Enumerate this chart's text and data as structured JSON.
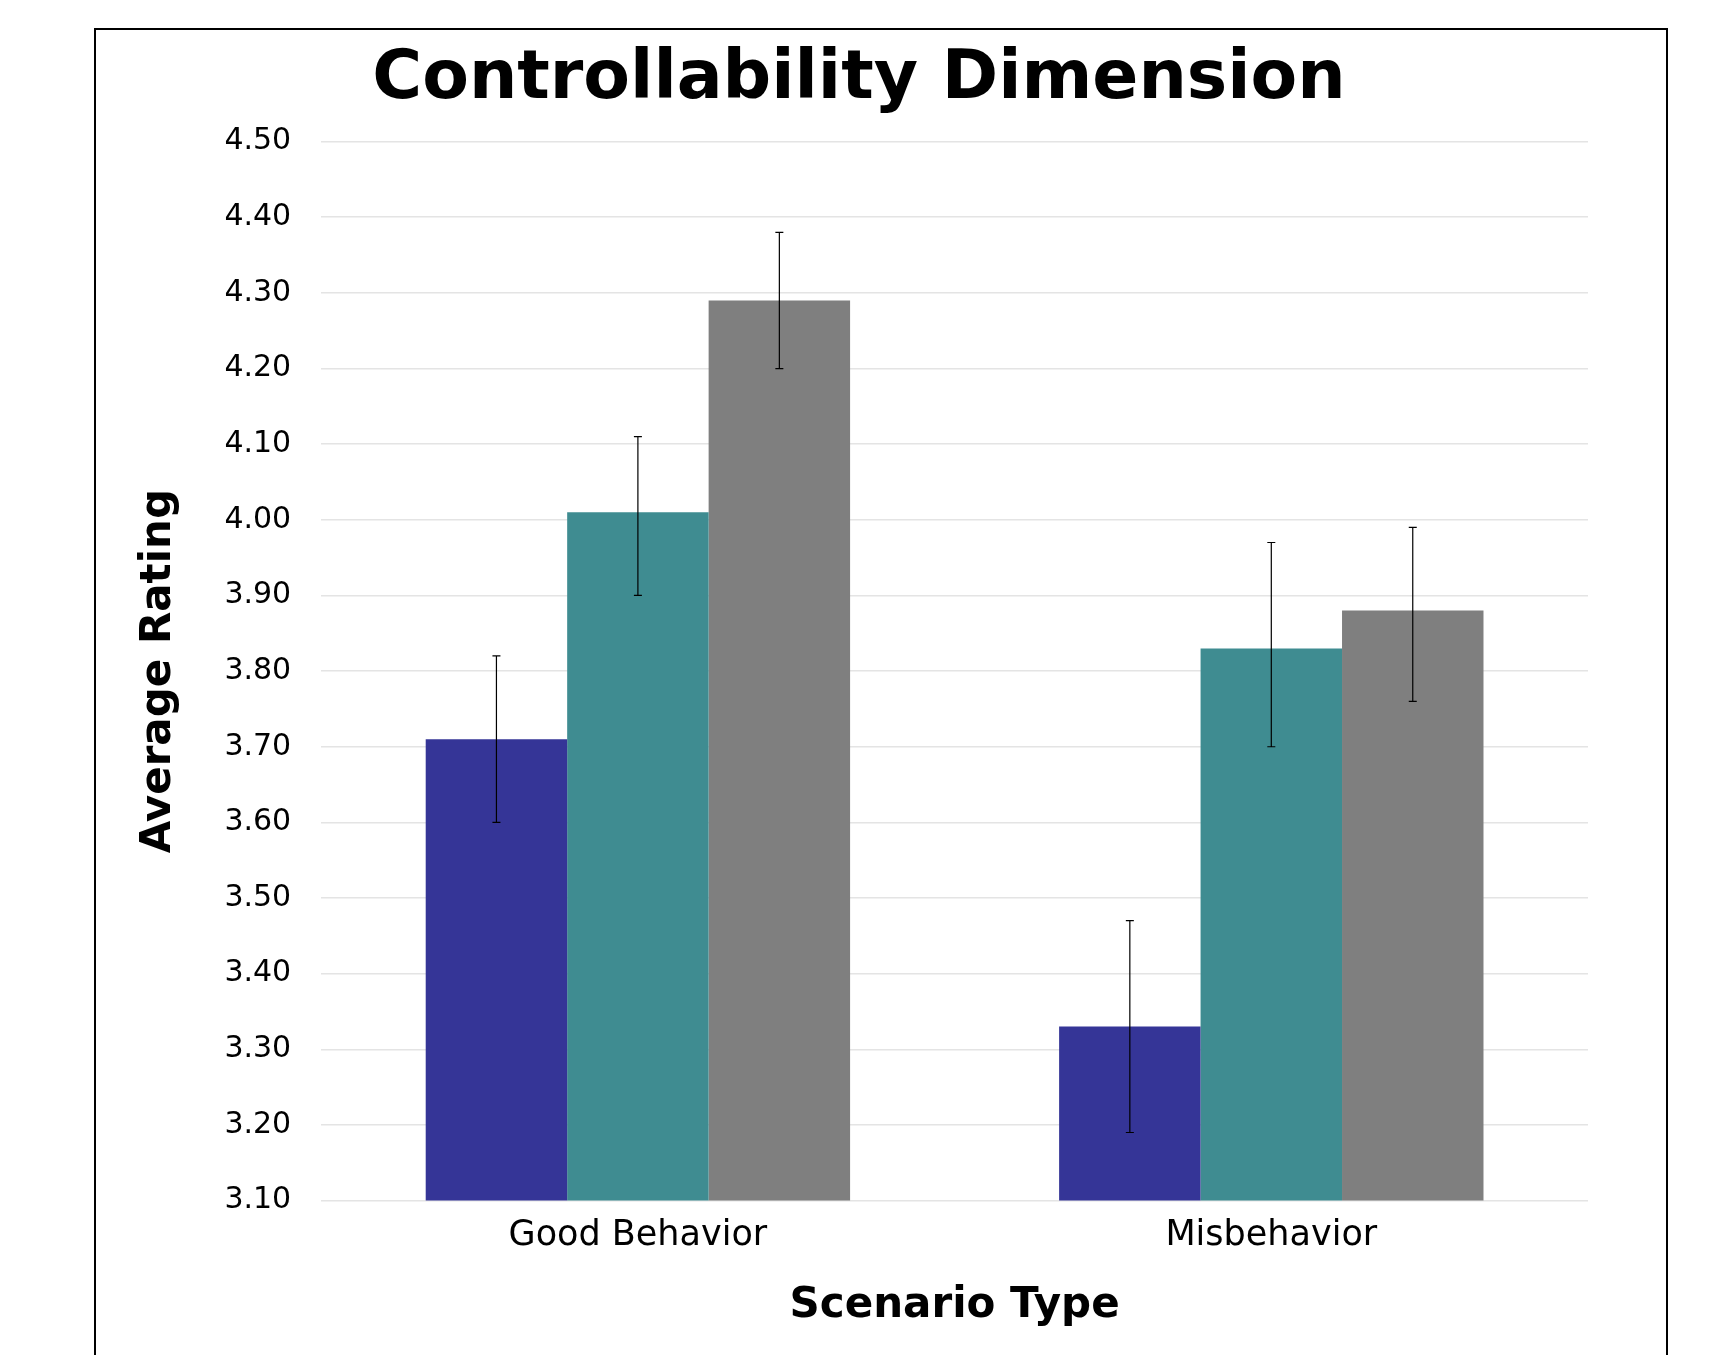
{
  "chart_data": {
    "type": "bar",
    "title": "Controllability Dimension",
    "xlabel": "Scenario Type",
    "ylabel": "Average Rating",
    "categories": [
      "Good Behavior",
      "Misbehavior"
    ],
    "series": [
      {
        "color": "#353597",
        "values": [
          3.71,
          3.33
        ],
        "errors": [
          [
            3.6,
            3.82
          ],
          [
            3.19,
            3.47
          ]
        ]
      },
      {
        "color": "#3f8c91",
        "values": [
          4.01,
          3.83
        ],
        "errors": [
          [
            3.9,
            4.11
          ],
          [
            3.7,
            3.97
          ]
        ]
      },
      {
        "color": "#7f7f7f",
        "values": [
          4.29,
          3.88
        ],
        "errors": [
          [
            4.2,
            4.38
          ],
          [
            3.76,
            3.99
          ]
        ]
      }
    ],
    "ylim": [
      3.1,
      4.5
    ],
    "yticks": [
      {
        "value": 3.1,
        "label": "3.10"
      },
      {
        "value": 3.2,
        "label": "3.20"
      },
      {
        "value": 3.3,
        "label": "3.30"
      },
      {
        "value": 3.4,
        "label": "3.40"
      },
      {
        "value": 3.5,
        "label": "3.50"
      },
      {
        "value": 3.6,
        "label": "3.60"
      },
      {
        "value": 3.7,
        "label": "3.70"
      },
      {
        "value": 3.8,
        "label": "3.80"
      },
      {
        "value": 3.9,
        "label": "3.90"
      },
      {
        "value": 4.0,
        "label": "4.00"
      },
      {
        "value": 4.1,
        "label": "4.10"
      },
      {
        "value": 4.2,
        "label": "4.20"
      },
      {
        "value": 4.3,
        "label": "4.30"
      },
      {
        "value": 4.4,
        "label": "4.40"
      },
      {
        "value": 4.5,
        "label": "4.50"
      }
    ],
    "grid": "y",
    "legend": false
  }
}
